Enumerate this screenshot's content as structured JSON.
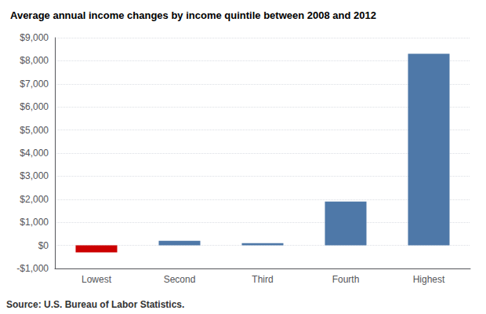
{
  "chart_data": {
    "type": "bar",
    "title": "Average annual income changes by income quintile between 2008 and 2012",
    "annotations": [
      "Source: U.S. Bureau of Labor Statistics."
    ],
    "categories": [
      "Lowest",
      "Second",
      "Third",
      "Fourth",
      "Highest"
    ],
    "values": [
      -300,
      200,
      100,
      1900,
      8300
    ],
    "colors": [
      "#cc0000",
      "#4e78a8",
      "#4e78a8",
      "#4e78a8",
      "#4e78a8"
    ],
    "ylim": [
      -1000,
      9000
    ],
    "yticks": [
      {
        "value": -1000,
        "label": "-$1,000"
      },
      {
        "value": 0,
        "label": "$0"
      },
      {
        "value": 1000,
        "label": "$1,000"
      },
      {
        "value": 2000,
        "label": "$2,000"
      },
      {
        "value": 3000,
        "label": "$3,000"
      },
      {
        "value": 4000,
        "label": "$4,000"
      },
      {
        "value": 5000,
        "label": "$5,000"
      },
      {
        "value": 6000,
        "label": "$6,000"
      },
      {
        "value": 7000,
        "label": "$7,000"
      },
      {
        "value": 8000,
        "label": "$8,000"
      },
      {
        "value": 9000,
        "label": "$9,000"
      }
    ],
    "grid": true
  }
}
